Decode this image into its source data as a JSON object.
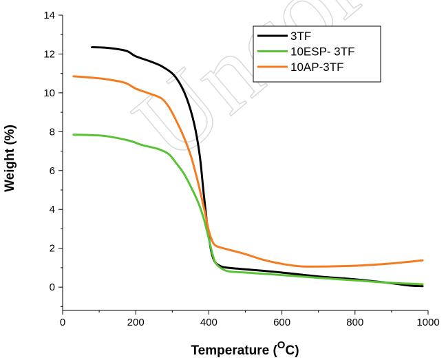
{
  "watermark": "Uncorrected",
  "chart_data": {
    "type": "line",
    "xlabel": "Temperature (",
    "xlabel_unit_sup": "O",
    "xlabel_unit": "C",
    "xlabel_close": ")",
    "ylabel": "Weight (%)",
    "xlim": [
      0,
      1000
    ],
    "ylim": [
      -1.2,
      14
    ],
    "x_ticks": [
      0,
      200,
      400,
      600,
      800,
      1000
    ],
    "y_ticks": [
      0,
      2,
      4,
      6,
      8,
      10,
      12,
      14
    ],
    "grid": false,
    "legend_position": "top-right",
    "series": [
      {
        "name": "3TF",
        "color": "#000000",
        "points": [
          [
            80,
            12.35
          ],
          [
            120,
            12.32
          ],
          [
            160,
            12.22
          ],
          [
            180,
            12.12
          ],
          [
            200,
            11.88
          ],
          [
            240,
            11.62
          ],
          [
            270,
            11.38
          ],
          [
            300,
            11.0
          ],
          [
            320,
            10.5
          ],
          [
            340,
            9.7
          ],
          [
            360,
            8.4
          ],
          [
            375,
            6.8
          ],
          [
            385,
            5.0
          ],
          [
            395,
            3.3
          ],
          [
            405,
            2.0
          ],
          [
            415,
            1.35
          ],
          [
            430,
            1.1
          ],
          [
            450,
            1.0
          ],
          [
            500,
            0.92
          ],
          [
            600,
            0.75
          ],
          [
            700,
            0.55
          ],
          [
            800,
            0.4
          ],
          [
            900,
            0.2
          ],
          [
            950,
            0.08
          ],
          [
            985,
            0.05
          ]
        ]
      },
      {
        "name": "10ESP- 3TF",
        "color": "#5bc236",
        "points": [
          [
            30,
            7.85
          ],
          [
            80,
            7.82
          ],
          [
            120,
            7.77
          ],
          [
            180,
            7.55
          ],
          [
            220,
            7.3
          ],
          [
            260,
            7.12
          ],
          [
            290,
            6.85
          ],
          [
            310,
            6.4
          ],
          [
            330,
            5.9
          ],
          [
            350,
            5.2
          ],
          [
            370,
            4.4
          ],
          [
            385,
            3.6
          ],
          [
            400,
            2.5
          ],
          [
            410,
            1.7
          ],
          [
            420,
            1.2
          ],
          [
            440,
            0.9
          ],
          [
            460,
            0.8
          ],
          [
            500,
            0.75
          ],
          [
            600,
            0.62
          ],
          [
            700,
            0.48
          ],
          [
            800,
            0.35
          ],
          [
            900,
            0.22
          ],
          [
            985,
            0.15
          ]
        ]
      },
      {
        "name": "10AP-3TF",
        "color": "#f47b20",
        "points": [
          [
            30,
            10.85
          ],
          [
            80,
            10.78
          ],
          [
            120,
            10.7
          ],
          [
            170,
            10.52
          ],
          [
            200,
            10.22
          ],
          [
            240,
            9.95
          ],
          [
            270,
            9.72
          ],
          [
            290,
            9.3
          ],
          [
            310,
            8.6
          ],
          [
            330,
            7.8
          ],
          [
            350,
            6.8
          ],
          [
            365,
            5.8
          ],
          [
            378,
            4.8
          ],
          [
            390,
            3.8
          ],
          [
            400,
            2.9
          ],
          [
            410,
            2.35
          ],
          [
            420,
            2.12
          ],
          [
            440,
            2.0
          ],
          [
            460,
            1.9
          ],
          [
            500,
            1.7
          ],
          [
            550,
            1.4
          ],
          [
            600,
            1.2
          ],
          [
            650,
            1.07
          ],
          [
            700,
            1.06
          ],
          [
            800,
            1.1
          ],
          [
            900,
            1.22
          ],
          [
            985,
            1.38
          ]
        ]
      }
    ]
  }
}
